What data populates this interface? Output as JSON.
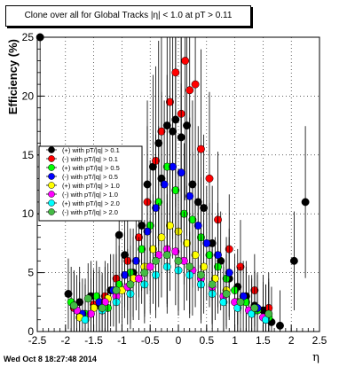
{
  "chart_data": {
    "type": "scatter",
    "title": "Clone  over all for Global Tracks |η| < 1.0 at pT > 0.11",
    "xlabel": "η",
    "ylabel": "Efficiency (%)",
    "xlim": [
      -2.5,
      2.5
    ],
    "ylim": [
      0,
      25
    ],
    "x_ticks": [
      "-2.5",
      "-2",
      "-1.5",
      "-1",
      "-0.5",
      "0",
      "0.5",
      "1",
      "1.5",
      "2",
      "2.5"
    ],
    "y_ticks": [
      "0",
      "5",
      "10",
      "15",
      "20",
      "25"
    ],
    "grid": true,
    "legend_position": "left-middle",
    "series": [
      {
        "name": "(+) with pT/|q| > 0.1",
        "color": "#000000",
        "x": [
          -2.45,
          -1.95,
          -1.75,
          -1.55,
          -1.4,
          -1.2,
          -1.05,
          -0.95,
          -0.8,
          -0.65,
          -0.55,
          -0.45,
          -0.35,
          -0.3,
          -0.2,
          -0.1,
          -0.05,
          0.05,
          0.15,
          0.25,
          0.35,
          0.45,
          0.6,
          0.75,
          0.9,
          1.05,
          1.2,
          1.35,
          1.5,
          1.65,
          1.8,
          2.05,
          2.25
        ],
        "y": [
          25,
          3.2,
          2.5,
          3.0,
          2.2,
          3.5,
          8.2,
          6.5,
          5.0,
          9.0,
          12.5,
          14.0,
          16.0,
          13.0,
          17.5,
          17.0,
          18.0,
          16.5,
          17.5,
          12.5,
          11.0,
          10.5,
          7.5,
          6.0,
          4.5,
          3.8,
          3.0,
          2.2,
          1.8,
          0.8,
          0.5,
          6.0,
          11.0
        ]
      },
      {
        "name": "(-) with pT/|q| > 0.1",
        "color": "#ff0000",
        "x": [
          -1.85,
          -1.5,
          -1.3,
          -1.1,
          -0.9,
          -0.7,
          -0.55,
          -0.4,
          -0.3,
          -0.15,
          -0.05,
          0.05,
          0.12,
          0.2,
          0.3,
          0.4,
          0.55,
          0.7,
          0.9,
          1.1,
          1.35,
          1.6
        ],
        "y": [
          2.0,
          2.3,
          3.0,
          4.5,
          6.0,
          8.0,
          11.0,
          14.5,
          17.0,
          19.5,
          22.0,
          18.5,
          23.0,
          20.5,
          21.0,
          15.5,
          13.0,
          9.5,
          7.0,
          5.5,
          3.5,
          2.0
        ]
      },
      {
        "name": "(+) with pT/|q| > 0.5",
        "color": "#00ff00",
        "x": [
          -1.9,
          -1.65,
          -1.45,
          -1.25,
          -1.05,
          -0.85,
          -0.65,
          -0.5,
          -0.35,
          -0.2,
          -0.05,
          0.1,
          0.25,
          0.4,
          0.55,
          0.7,
          0.85,
          1.0,
          1.2,
          1.4,
          1.6
        ],
        "y": [
          2.5,
          1.5,
          3.0,
          2.0,
          4.0,
          5.0,
          7.0,
          9.0,
          11.0,
          14.0,
          12.0,
          10.0,
          9.5,
          8.0,
          6.5,
          5.5,
          4.5,
          3.5,
          2.5,
          1.8,
          1.2
        ]
      },
      {
        "name": "(-) with pT/|q| > 0.5",
        "color": "#0000ff",
        "x": [
          -1.7,
          -1.4,
          -1.15,
          -0.95,
          -0.75,
          -0.55,
          -0.4,
          -0.25,
          -0.1,
          0.05,
          0.2,
          0.35,
          0.5,
          0.7,
          0.9,
          1.15,
          1.4
        ],
        "y": [
          1.5,
          2.5,
          3.5,
          4.8,
          6.0,
          8.5,
          10.5,
          12.5,
          14.0,
          13.5,
          11.5,
          9.0,
          7.5,
          6.5,
          5.0,
          3.0,
          2.0
        ]
      },
      {
        "name": "(+) with pT/|q| > 1.0",
        "color": "#ffff00",
        "x": [
          -1.75,
          -1.5,
          -1.25,
          -1.0,
          -0.8,
          -0.6,
          -0.45,
          -0.3,
          -0.15,
          0.0,
          0.15,
          0.3,
          0.45,
          0.65,
          0.85,
          1.05,
          1.3,
          1.55
        ],
        "y": [
          1.2,
          2.0,
          2.8,
          3.5,
          4.5,
          5.5,
          7.0,
          8.0,
          9.0,
          8.5,
          7.5,
          6.5,
          5.5,
          4.5,
          3.5,
          2.5,
          1.8,
          1.0
        ]
      },
      {
        "name": "(-) with pT/|q| > 1.0",
        "color": "#ff00ff",
        "x": [
          -1.8,
          -1.55,
          -1.3,
          -1.1,
          -0.9,
          -0.7,
          -0.5,
          -0.35,
          -0.2,
          -0.05,
          0.1,
          0.25,
          0.4,
          0.6,
          0.8,
          1.0,
          1.25,
          1.5
        ],
        "y": [
          1.8,
          1.5,
          2.5,
          3.0,
          3.8,
          4.5,
          5.5,
          6.5,
          7.0,
          6.8,
          6.0,
          5.2,
          4.5,
          3.8,
          3.0,
          2.5,
          1.8,
          1.2
        ]
      },
      {
        "name": "(+) with pT/|q| > 2.0",
        "color": "#00ffff",
        "x": [
          -1.65,
          -1.35,
          -1.1,
          -0.85,
          -0.6,
          -0.4,
          -0.2,
          0.0,
          0.2,
          0.4,
          0.6,
          0.8,
          1.05,
          1.3,
          1.55
        ],
        "y": [
          1.0,
          1.8,
          2.5,
          3.2,
          4.0,
          4.8,
          5.5,
          5.2,
          4.8,
          4.0,
          3.2,
          2.5,
          2.0,
          1.5,
          1.0
        ]
      },
      {
        "name": "(-) with pT/|q| > 2.0",
        "color": "#44bb44",
        "x": [
          -1.85,
          -1.6,
          -1.35,
          -1.1,
          -0.85,
          -0.6,
          -0.4,
          -0.2,
          0.0,
          0.2,
          0.4,
          0.6,
          0.85,
          1.1,
          1.35,
          1.6
        ],
        "y": [
          2.2,
          2.8,
          2.0,
          3.5,
          4.0,
          5.0,
          6.0,
          6.5,
          6.0,
          5.5,
          4.8,
          4.0,
          3.2,
          2.5,
          2.0,
          1.5
        ]
      }
    ]
  },
  "footer": {
    "timestamp": "Wed Oct  8 18:27:48 2014"
  }
}
